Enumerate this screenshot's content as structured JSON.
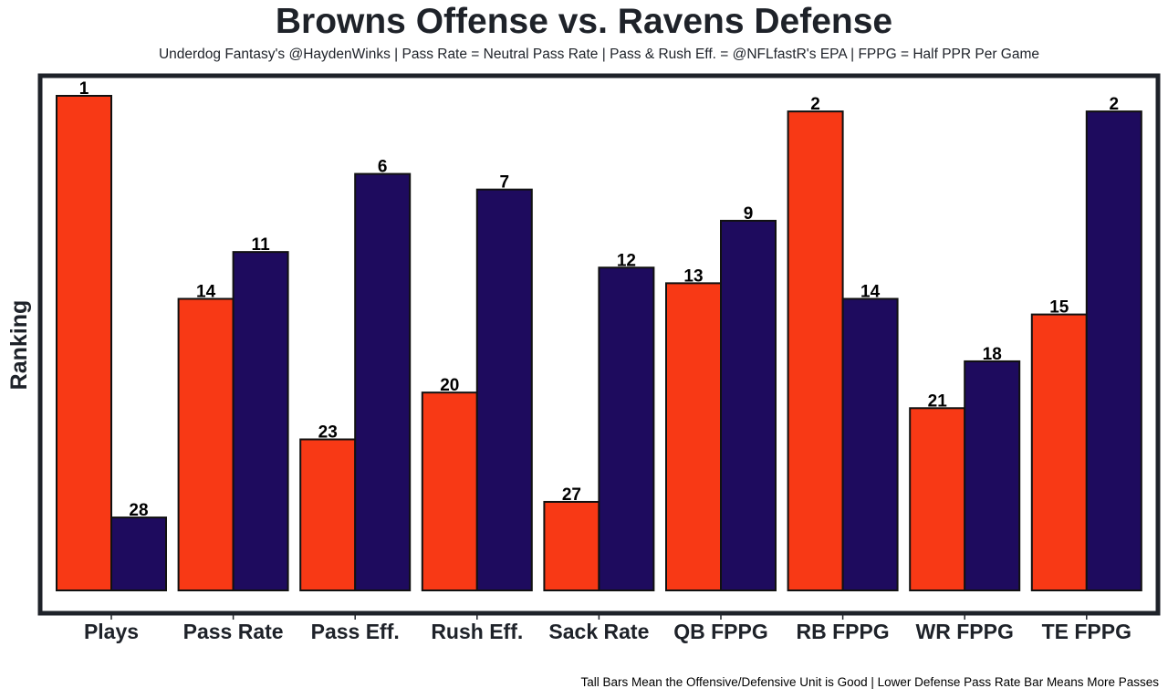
{
  "chart_data": {
    "type": "bar",
    "title": "Browns Offense vs. Ravens Defense",
    "subtitle": "Underdog Fantasy's @HaydenWinks | Pass Rate = Neutral Pass Rate | Pass & Rush Eff. = @NFLfastR's EPA | FPPG = Half PPR Per Game",
    "caption": "Tall Bars Mean the Offensive/Defensive Unit is Good | Lower Defense Pass Rate Bar Means More Passes",
    "xlabel": "",
    "ylabel": "Ranking",
    "categories": [
      "Plays",
      "Pass Rate",
      "Pass Eff.",
      "Rush Eff.",
      "Sack Rate",
      "QB FPPG",
      "RB FPPG",
      "WR FPPG",
      "TE FPPG"
    ],
    "series": [
      {
        "name": "Browns Offense",
        "color": "#f83915",
        "values": [
          1,
          14,
          23,
          20,
          27,
          13,
          2,
          21,
          15
        ]
      },
      {
        "name": "Ravens Defense",
        "color": "#1e0b5e",
        "values": [
          28,
          11,
          6,
          7,
          12,
          9,
          14,
          18,
          2
        ]
      }
    ],
    "value_scale": "inverted rank (rank 1 = tallest bar)",
    "rank_range": [
      1,
      32
    ],
    "y_ticks_shown": false,
    "grid": false,
    "legend": "none"
  }
}
